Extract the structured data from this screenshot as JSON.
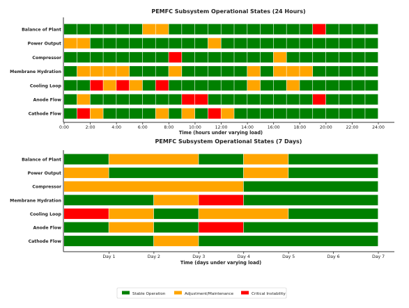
{
  "colors": {
    "stable": "#008000",
    "adjust": "#FFA500",
    "critical": "#FF0000",
    "axis": "#333333",
    "text": "#222222"
  },
  "legend": {
    "position": "bottom-center",
    "items": [
      {
        "state": "stable",
        "label": "Stable Operation"
      },
      {
        "state": "adjust",
        "label": "Adjustment/Maintenance"
      },
      {
        "state": "critical",
        "label": "Critical Instability"
      }
    ]
  },
  "chart_data": [
    {
      "type": "bar",
      "subtype": "horizontal-state-timeline",
      "title": "PEMFC Subsystem Operational States (24 Hours)",
      "xlabel": "Time (hours under varying load)",
      "ylabel": "",
      "xlim": [
        0,
        24
      ],
      "xticks": [
        0,
        2,
        4,
        6,
        8,
        10,
        12,
        14,
        16,
        18,
        20,
        22,
        24
      ],
      "xticklabels": [
        "0:00",
        "2:00",
        "4:00",
        "6:00",
        "8:00",
        "10:00",
        "12:00",
        "14:00",
        "16:00",
        "18:00",
        "20:00",
        "22:00",
        "24:00"
      ],
      "categories": [
        "Balance of Plant",
        "Power Output",
        "Compressor",
        "Membrane Hydration",
        "Cooling Loop",
        "Anode Flow",
        "Cathode Flow"
      ],
      "grid": false,
      "segment_unit": "hours",
      "series": [
        {
          "name": "Balance of Plant",
          "states": [
            "stable",
            "stable",
            "stable",
            "stable",
            "stable",
            "stable",
            "adjust",
            "adjust",
            "stable",
            "stable",
            "stable",
            "stable",
            "stable",
            "stable",
            "stable",
            "stable",
            "stable",
            "stable",
            "stable",
            "critical",
            "stable",
            "stable",
            "stable",
            "stable"
          ]
        },
        {
          "name": "Power Output",
          "states": [
            "adjust",
            "adjust",
            "stable",
            "stable",
            "stable",
            "stable",
            "stable",
            "stable",
            "stable",
            "stable",
            "stable",
            "adjust",
            "stable",
            "stable",
            "stable",
            "stable",
            "stable",
            "stable",
            "stable",
            "stable",
            "stable",
            "stable",
            "stable",
            "stable"
          ]
        },
        {
          "name": "Compressor",
          "states": [
            "stable",
            "stable",
            "stable",
            "stable",
            "stable",
            "stable",
            "stable",
            "stable",
            "critical",
            "stable",
            "stable",
            "stable",
            "stable",
            "stable",
            "stable",
            "stable",
            "adjust",
            "stable",
            "stable",
            "stable",
            "stable",
            "stable",
            "stable",
            "stable"
          ]
        },
        {
          "name": "Membrane Hydration",
          "states": [
            "stable",
            "adjust",
            "adjust",
            "adjust",
            "adjust",
            "stable",
            "stable",
            "stable",
            "adjust",
            "stable",
            "stable",
            "stable",
            "stable",
            "stable",
            "adjust",
            "stable",
            "adjust",
            "adjust",
            "adjust",
            "stable",
            "stable",
            "stable",
            "stable",
            "stable"
          ]
        },
        {
          "name": "Cooling Loop",
          "states": [
            "stable",
            "stable",
            "critical",
            "adjust",
            "critical",
            "adjust",
            "stable",
            "critical",
            "stable",
            "stable",
            "stable",
            "stable",
            "stable",
            "stable",
            "adjust",
            "stable",
            "stable",
            "adjust",
            "stable",
            "stable",
            "stable",
            "stable",
            "stable",
            "stable"
          ]
        },
        {
          "name": "Anode Flow",
          "states": [
            "stable",
            "adjust",
            "stable",
            "stable",
            "stable",
            "stable",
            "stable",
            "stable",
            "stable",
            "critical",
            "critical",
            "stable",
            "stable",
            "stable",
            "stable",
            "stable",
            "stable",
            "stable",
            "stable",
            "critical",
            "stable",
            "stable",
            "stable",
            "stable"
          ]
        },
        {
          "name": "Cathode Flow",
          "states": [
            "stable",
            "critical",
            "adjust",
            "stable",
            "stable",
            "stable",
            "stable",
            "adjust",
            "stable",
            "adjust",
            "stable",
            "critical",
            "adjust",
            "stable",
            "stable",
            "stable",
            "stable",
            "stable",
            "stable",
            "stable",
            "stable",
            "stable",
            "stable",
            "stable"
          ]
        }
      ]
    },
    {
      "type": "bar",
      "subtype": "horizontal-state-timeline",
      "title": "PEMFC Subsystem Operational States (7 Days)",
      "xlabel": "Time (days under varying load)",
      "ylabel": "",
      "xlim": [
        0,
        7
      ],
      "xticks": [
        1,
        2,
        3,
        4,
        5,
        6,
        7
      ],
      "xticklabels": [
        "Day 1",
        "Day 2",
        "Day 3",
        "Day 4",
        "Day 5",
        "Day 6",
        "Day 7"
      ],
      "categories": [
        "Balance of Plant",
        "Power Output",
        "Compressor",
        "Membrane Hydration",
        "Cooling Loop",
        "Anode Flow",
        "Cathode Flow"
      ],
      "grid": false,
      "series": [
        {
          "name": "Balance of Plant",
          "segments": [
            {
              "start": 0,
              "end": 1,
              "state": "stable"
            },
            {
              "start": 1,
              "end": 3,
              "state": "adjust"
            },
            {
              "start": 3,
              "end": 4,
              "state": "stable"
            },
            {
              "start": 4,
              "end": 5,
              "state": "adjust"
            },
            {
              "start": 5,
              "end": 7,
              "state": "stable"
            }
          ]
        },
        {
          "name": "Power Output",
          "segments": [
            {
              "start": 0,
              "end": 1,
              "state": "adjust"
            },
            {
              "start": 1,
              "end": 4,
              "state": "stable"
            },
            {
              "start": 4,
              "end": 5,
              "state": "adjust"
            },
            {
              "start": 5,
              "end": 7,
              "state": "stable"
            }
          ]
        },
        {
          "name": "Compressor",
          "segments": [
            {
              "start": 0,
              "end": 4,
              "state": "adjust"
            },
            {
              "start": 4,
              "end": 7,
              "state": "stable"
            }
          ]
        },
        {
          "name": "Membrane Hydration",
          "segments": [
            {
              "start": 0,
              "end": 2,
              "state": "stable"
            },
            {
              "start": 2,
              "end": 3,
              "state": "adjust"
            },
            {
              "start": 3,
              "end": 4,
              "state": "critical"
            },
            {
              "start": 4,
              "end": 7,
              "state": "stable"
            }
          ]
        },
        {
          "name": "Cooling Loop",
          "segments": [
            {
              "start": 0,
              "end": 1,
              "state": "critical"
            },
            {
              "start": 1,
              "end": 2,
              "state": "adjust"
            },
            {
              "start": 2,
              "end": 3,
              "state": "stable"
            },
            {
              "start": 3,
              "end": 5,
              "state": "adjust"
            },
            {
              "start": 5,
              "end": 7,
              "state": "stable"
            }
          ]
        },
        {
          "name": "Anode Flow",
          "segments": [
            {
              "start": 0,
              "end": 1,
              "state": "stable"
            },
            {
              "start": 1,
              "end": 2,
              "state": "adjust"
            },
            {
              "start": 2,
              "end": 3,
              "state": "stable"
            },
            {
              "start": 3,
              "end": 4,
              "state": "critical"
            },
            {
              "start": 4,
              "end": 7,
              "state": "stable"
            }
          ]
        },
        {
          "name": "Cathode Flow",
          "segments": [
            {
              "start": 0,
              "end": 2,
              "state": "stable"
            },
            {
              "start": 2,
              "end": 3,
              "state": "adjust"
            },
            {
              "start": 3,
              "end": 7,
              "state": "stable"
            }
          ]
        }
      ]
    }
  ]
}
